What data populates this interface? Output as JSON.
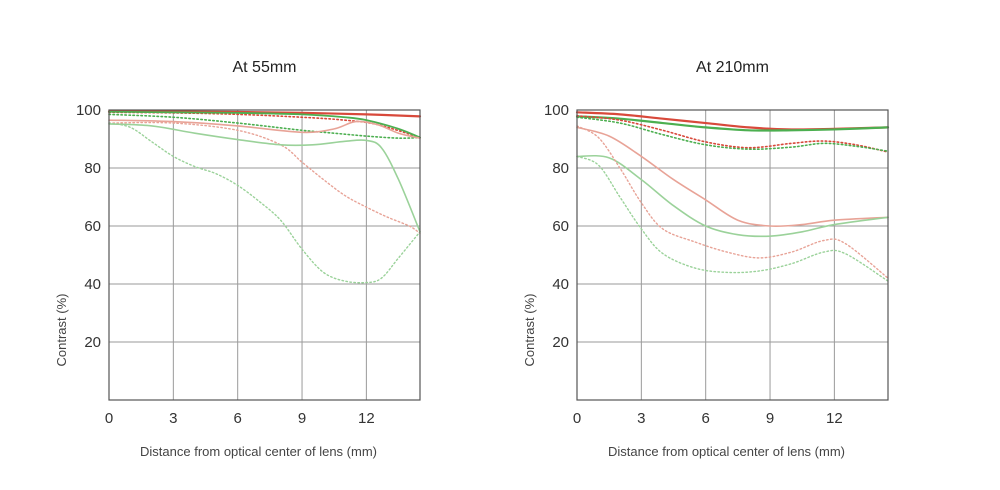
{
  "chart_data": [
    {
      "type": "line",
      "title": "At 55mm",
      "xlabel": "Distance from optical center of lens (mm)",
      "ylabel": "Contrast (%)",
      "xlim": [
        0,
        14.5
      ],
      "ylim": [
        0,
        100
      ],
      "x_ticks": [
        "0",
        "3",
        "6",
        "9",
        "12"
      ],
      "y_ticks": [
        "20",
        "40",
        "60",
        "80",
        "100"
      ],
      "grid": true,
      "series": [
        {
          "color": "#d8493b",
          "dash": "solid",
          "width": 2.2,
          "points": [
            [
              0,
              99.5
            ],
            [
              3,
              99.5
            ],
            [
              6,
              99.3
            ],
            [
              9,
              99
            ],
            [
              12,
              98.5
            ],
            [
              14.5,
              97.8
            ]
          ]
        },
        {
          "color": "#d8493b",
          "dash": "dotted",
          "width": 1.6,
          "points": [
            [
              0,
              99.2
            ],
            [
              3,
              99
            ],
            [
              6,
              98.5
            ],
            [
              9,
              97.5
            ],
            [
              11,
              96.5
            ],
            [
              12.5,
              95
            ],
            [
              14.5,
              90.5
            ]
          ]
        },
        {
          "color": "#4caf50",
          "dash": "solid",
          "width": 1.8,
          "points": [
            [
              0,
              99.4
            ],
            [
              3,
              99.2
            ],
            [
              6,
              99
            ],
            [
              9,
              98.5
            ],
            [
              11,
              97.5
            ],
            [
              12,
              96.5
            ],
            [
              13.5,
              93.5
            ],
            [
              14.5,
              90.5
            ]
          ]
        },
        {
          "color": "#4caf50",
          "dash": "dotted",
          "width": 1.6,
          "points": [
            [
              0,
              98.5
            ],
            [
              3,
              97.5
            ],
            [
              6,
              95.5
            ],
            [
              9,
              93
            ],
            [
              10.5,
              92
            ],
            [
              12,
              91
            ],
            [
              13.5,
              90.3
            ],
            [
              14.5,
              90.5
            ]
          ]
        },
        {
          "color": "#e8a397",
          "dash": "solid",
          "width": 1.6,
          "points": [
            [
              0,
              96.5
            ],
            [
              3,
              96
            ],
            [
              6,
              94.5
            ],
            [
              9,
              92.3
            ],
            [
              10.5,
              93.5
            ],
            [
              11.5,
              96
            ],
            [
              12.5,
              95
            ],
            [
              13.5,
              92
            ],
            [
              14.5,
              90.3
            ]
          ]
        },
        {
          "color": "#e8a397",
          "dash": "dotted",
          "width": 1.4,
          "points": [
            [
              0,
              95.5
            ],
            [
              3,
              95.5
            ],
            [
              6,
              93
            ],
            [
              8,
              88
            ],
            [
              9,
              82
            ],
            [
              10,
              76
            ],
            [
              11,
              70.5
            ],
            [
              12,
              66.5
            ],
            [
              13,
              63
            ],
            [
              14,
              60
            ],
            [
              14.5,
              57.5
            ]
          ]
        },
        {
          "color": "#9bd29a",
          "dash": "solid",
          "width": 1.6,
          "points": [
            [
              0,
              95.2
            ],
            [
              2,
              94.5
            ],
            [
              4,
              92
            ],
            [
              6,
              89.8
            ],
            [
              8,
              88
            ],
            [
              9.5,
              88
            ],
            [
              11,
              89.2
            ],
            [
              12,
              89.5
            ],
            [
              12.7,
              87
            ],
            [
              13.5,
              76
            ],
            [
              14.5,
              58
            ]
          ]
        },
        {
          "color": "#9bd29a",
          "dash": "dotted",
          "width": 1.4,
          "points": [
            [
              0,
              95.5
            ],
            [
              1,
              94
            ],
            [
              2,
              89
            ],
            [
              3,
              84
            ],
            [
              4,
              80.5
            ],
            [
              5,
              78
            ],
            [
              6,
              74
            ],
            [
              7,
              68.5
            ],
            [
              8,
              62
            ],
            [
              9,
              52
            ],
            [
              10,
              44
            ],
            [
              11,
              41
            ],
            [
              12,
              40.5
            ],
            [
              12.7,
              42
            ],
            [
              13.5,
              49
            ],
            [
              14.5,
              58
            ]
          ]
        }
      ]
    },
    {
      "type": "line",
      "title": "At 210mm",
      "xlabel": "Distance from optical center of lens (mm)",
      "ylabel": "Contrast (%)",
      "xlim": [
        0,
        14.5
      ],
      "ylim": [
        0,
        100
      ],
      "x_ticks": [
        "0",
        "3",
        "6",
        "9",
        "12"
      ],
      "y_ticks": [
        "20",
        "40",
        "60",
        "80",
        "100"
      ],
      "grid": true,
      "series": [
        {
          "color": "#d8493b",
          "dash": "solid",
          "width": 2.2,
          "points": [
            [
              0,
              99.2
            ],
            [
              2,
              98.5
            ],
            [
              4,
              97
            ],
            [
              6,
              95.5
            ],
            [
              8,
              94
            ],
            [
              10,
              93.3
            ],
            [
              12,
              93.5
            ],
            [
              14.5,
              94
            ]
          ]
        },
        {
          "color": "#4caf50",
          "dash": "solid",
          "width": 2.2,
          "points": [
            [
              0,
              97.8
            ],
            [
              2,
              97
            ],
            [
              4,
              95.5
            ],
            [
              6,
              94
            ],
            [
              8,
              93
            ],
            [
              10,
              93
            ],
            [
              12,
              93.3
            ],
            [
              14.5,
              94
            ]
          ]
        },
        {
          "color": "#d8493b",
          "dash": "dotted",
          "width": 1.6,
          "points": [
            [
              0,
              98
            ],
            [
              2,
              96.5
            ],
            [
              4,
              93
            ],
            [
              6,
              89
            ],
            [
              8,
              87
            ],
            [
              10,
              88.5
            ],
            [
              11.5,
              89.3
            ],
            [
              13,
              88
            ],
            [
              14.5,
              85.5
            ]
          ]
        },
        {
          "color": "#4caf50",
          "dash": "dotted",
          "width": 1.6,
          "points": [
            [
              0,
              97.5
            ],
            [
              2,
              95.5
            ],
            [
              4,
              91.5
            ],
            [
              6,
              88
            ],
            [
              8,
              86.5
            ],
            [
              10,
              87.2
            ],
            [
              11.5,
              88.5
            ],
            [
              13,
              87.5
            ],
            [
              14.5,
              85.8
            ]
          ]
        },
        {
          "color": "#e8a397",
          "dash": "solid",
          "width": 1.6,
          "points": [
            [
              0,
              94
            ],
            [
              1.5,
              91
            ],
            [
              3,
              84
            ],
            [
              4.5,
              76
            ],
            [
              6,
              69
            ],
            [
              7.5,
              62
            ],
            [
              9,
              60
            ],
            [
              10.5,
              60.5
            ],
            [
              12,
              62
            ],
            [
              14.5,
              63
            ]
          ]
        },
        {
          "color": "#9bd29a",
          "dash": "solid",
          "width": 1.6,
          "points": [
            [
              0,
              84
            ],
            [
              1.5,
              83.5
            ],
            [
              3,
              76
            ],
            [
              4.5,
              67
            ],
            [
              6,
              60
            ],
            [
              7.5,
              57
            ],
            [
              9,
              56.5
            ],
            [
              10.5,
              58
            ],
            [
              12,
              60.5
            ],
            [
              14.5,
              63
            ]
          ]
        },
        {
          "color": "#e8a397",
          "dash": "dotted",
          "width": 1.4,
          "points": [
            [
              0,
              94.5
            ],
            [
              1,
              90.5
            ],
            [
              2,
              80
            ],
            [
              3,
              68
            ],
            [
              4,
              59
            ],
            [
              5.5,
              54.5
            ],
            [
              7,
              51
            ],
            [
              8.5,
              49
            ],
            [
              10,
              51
            ],
            [
              11.5,
              55
            ],
            [
              12.5,
              54
            ],
            [
              14.5,
              42
            ]
          ]
        },
        {
          "color": "#9bd29a",
          "dash": "dotted",
          "width": 1.4,
          "points": [
            [
              0,
              84
            ],
            [
              1,
              81
            ],
            [
              2,
              70
            ],
            [
              3,
              59
            ],
            [
              4,
              50.5
            ],
            [
              5.5,
              45.5
            ],
            [
              7,
              44
            ],
            [
              8.5,
              44.5
            ],
            [
              10,
              47
            ],
            [
              11.5,
              51
            ],
            [
              12.5,
              50.5
            ],
            [
              14.5,
              41
            ]
          ]
        }
      ]
    }
  ]
}
